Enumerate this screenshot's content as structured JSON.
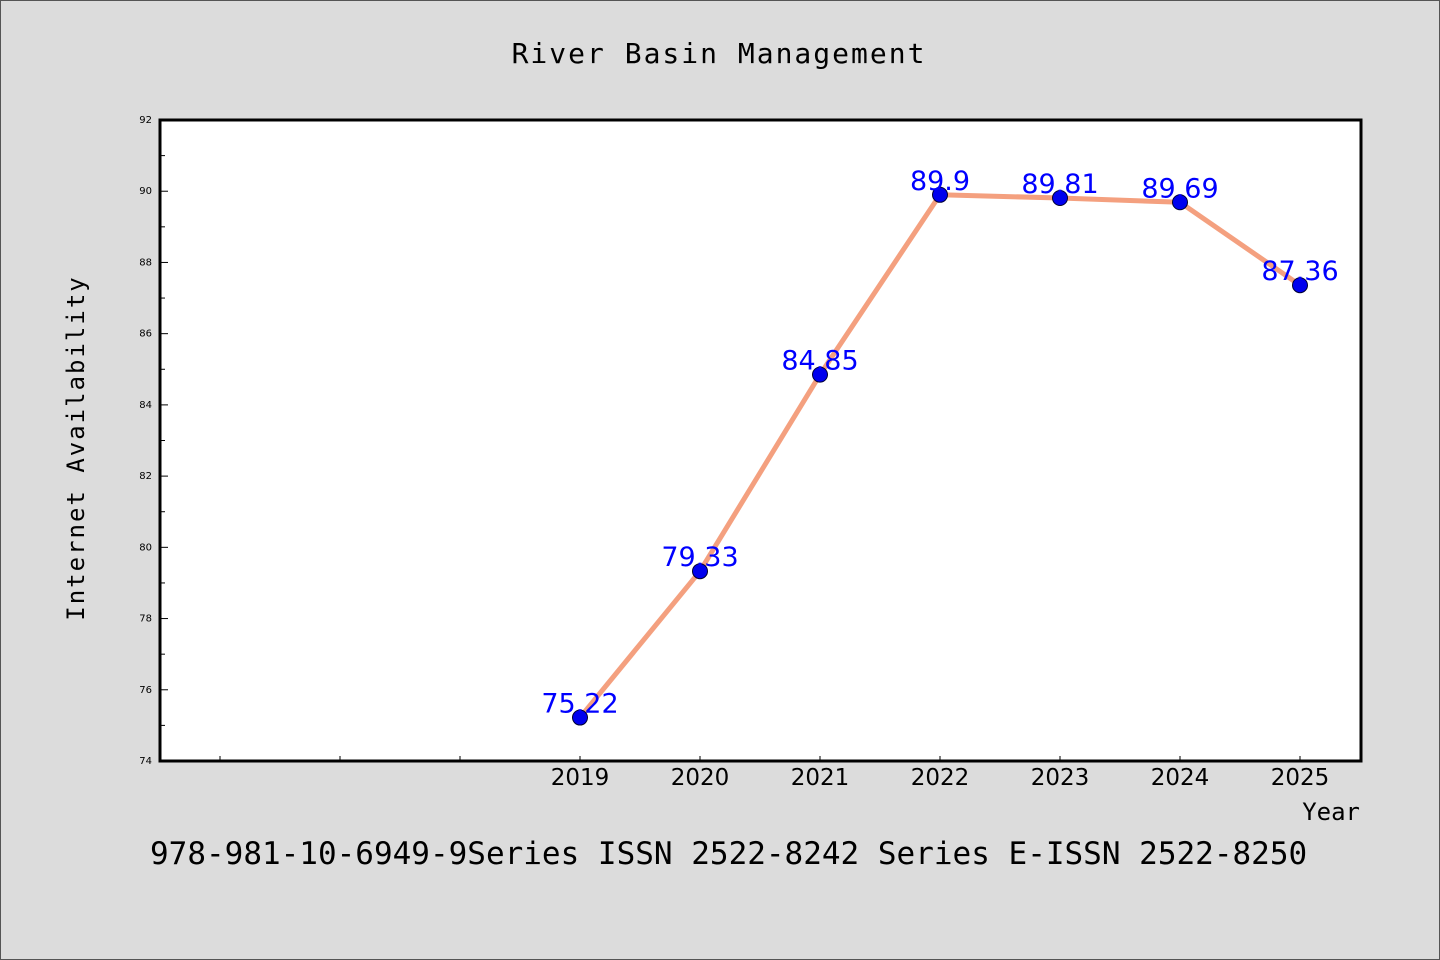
{
  "chart_data": {
    "type": "line",
    "title": "River Basin Management",
    "xlabel": "Year",
    "ylabel": "Internet Availability",
    "categories": [
      "2019",
      "2020",
      "2021",
      "2022",
      "2023",
      "2024",
      "2025"
    ],
    "series": [
      {
        "values": [
          75.22,
          79.33,
          84.85,
          89.9,
          89.81,
          89.69,
          87.36
        ],
        "labels": [
          "75.22",
          "79.33",
          "84.85",
          "89.9",
          "89.81",
          "89.69",
          "87.36"
        ]
      }
    ],
    "ylim": [
      74,
      92
    ],
    "yticks": [
      "74",
      "76",
      "78",
      "80",
      "82",
      "84",
      "86",
      "88",
      "90",
      "92"
    ],
    "grid": false,
    "legend": "none",
    "colors": {
      "line": "#f4a07f",
      "marker": "#0000ee",
      "label": "#0000ff",
      "plot_bg": "#ffffff",
      "page_bg": "#dcdcdc"
    },
    "footer": "978-981-10-6949-9Series ISSN 2522-8242 Series E-ISSN 2522-8250"
  }
}
